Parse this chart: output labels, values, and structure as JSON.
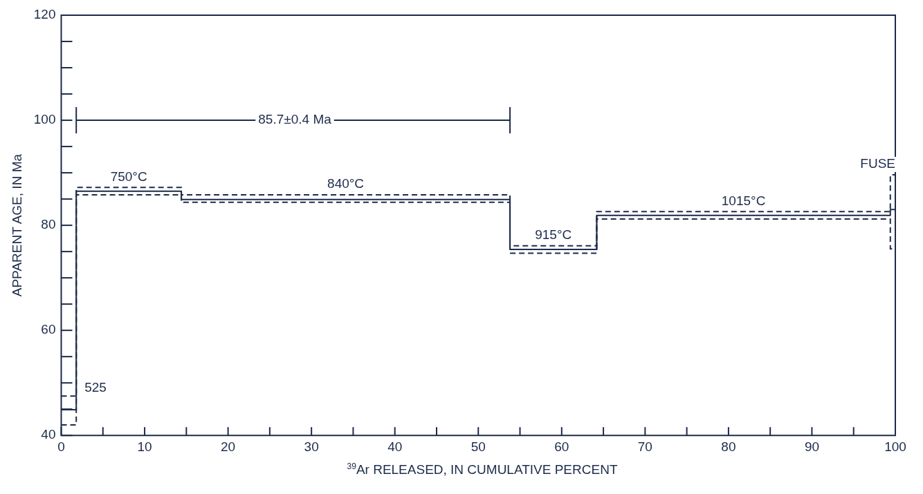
{
  "chart_data": {
    "type": "step",
    "xlabel": "$^{39}$Ar RELEASED, IN CUMULATIVE PERCENT",
    "ylabel": "APPARENT AGE, IN Ma",
    "xlim": [
      0,
      100
    ],
    "ylim": [
      40,
      120
    ],
    "xticks": [
      0,
      {
        "value": 5,
        "label": null
      },
      10,
      {
        "value": 15,
        "label": null
      },
      20,
      {
        "value": 25,
        "label": null
      },
      30,
      {
        "value": 35,
        "label": null
      },
      40,
      {
        "value": 45,
        "label": null
      },
      50,
      {
        "value": 55,
        "label": null
      },
      60,
      {
        "value": 65,
        "label": null
      },
      70,
      {
        "value": 75,
        "label": null
      },
      80,
      {
        "value": 85,
        "label": null
      },
      90,
      {
        "value": 95,
        "label": null
      },
      100
    ],
    "yticks": [
      40,
      {
        "value": 45,
        "label": null
      },
      {
        "value": 50,
        "label": null
      },
      {
        "value": 55,
        "label": null
      },
      60,
      {
        "value": 65,
        "label": null
      },
      {
        "value": 70,
        "label": null
      },
      {
        "value": 75,
        "label": null
      },
      80,
      {
        "value": 85,
        "label": null
      },
      {
        "value": 90,
        "label": null
      },
      {
        "value": 95,
        "label": null
      },
      100,
      {
        "value": 105,
        "label": null
      },
      {
        "value": 110,
        "label": null
      },
      {
        "value": 115,
        "label": null
      },
      120
    ],
    "marker": "none",
    "line_style": "solid",
    "series": [
      {
        "color": "#1c2b4a",
        "x": [
          0,
          1.8,
          14.4,
          53.8,
          64.2,
          99.4,
          100
        ],
        "values": [
          44.9,
          86.5,
          84.9,
          75.4,
          81.9,
          83,
          83
        ]
      },
      {
        "color": "#1c2b4a",
        "line_style": "dashed",
        "x": [
          0,
          1.8,
          14.4,
          53.8,
          64.2,
          99.4,
          100
        ],
        "values": [
          47.5,
          87.2,
          85.8,
          76.1,
          82.6,
          89.6,
          89.6
        ]
      },
      {
        "color": "#1c2b4a",
        "line_style": "dashed",
        "x": [
          0,
          1.8,
          14.4,
          53.8,
          64.2,
          99.4,
          100
        ],
        "values": [
          42.0,
          85.8,
          84.4,
          74.7,
          81.2,
          75.5,
          75.5
        ]
      },
      {
        "type": "line",
        "color": "#1c2b4a",
        "x": [
          1.8,
          53.8
        ],
        "values": [
          100,
          100
        ],
        "errors": [
          2.5,
          2.5
        ]
      }
    ],
    "annotations": [
      {
        "text": "85.7±0.4 Ma",
        "x": 28,
        "y": 100
      },
      "525",
      "750°C",
      "840°C",
      "915°C",
      "1015°C",
      "FUSE"
    ]
  }
}
